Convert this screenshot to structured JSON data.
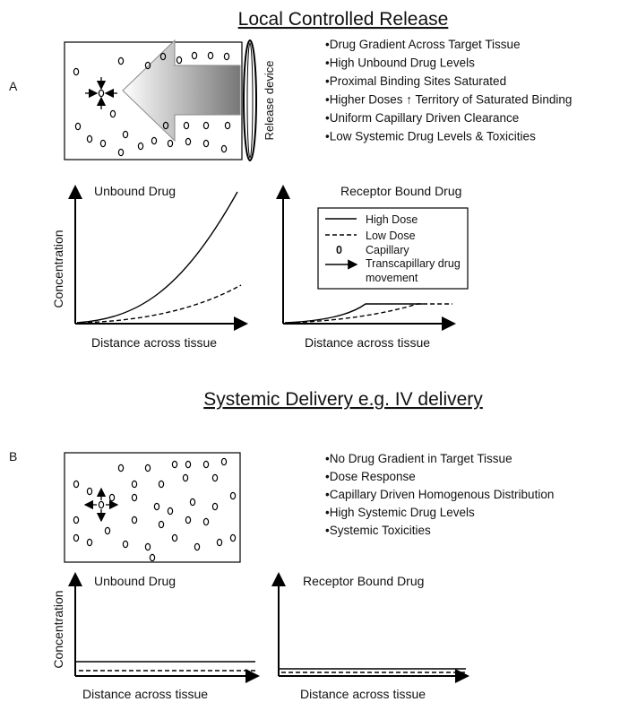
{
  "panel_a": {
    "label": "A",
    "title": "Local Controlled Release",
    "device_label": "Release device",
    "bullets": [
      "•Drug Gradient Across Target Tissue",
      "•High Unbound Drug Levels",
      "•Proximal Binding Sites Saturated",
      "•Higher Doses ↑ Territory of Saturated Binding",
      "•Uniform Capillary Driven Clearance",
      "•Low Systemic Drug Levels & Toxicities"
    ],
    "plots": [
      {
        "title": "Unbound Drug",
        "y_label": "Concentration",
        "x_label": "Distance across tissue"
      },
      {
        "title": "Receptor Bound Drug",
        "x_label": "Distance across tissue"
      }
    ],
    "legend": [
      {
        "label": "High Dose"
      },
      {
        "label": "Low Dose"
      },
      {
        "symbol": "0",
        "label": "Capillary"
      },
      {
        "lines": [
          "Transcapillary drug",
          "movement"
        ]
      }
    ]
  },
  "panel_b": {
    "label": "B",
    "title": "Systemic Delivery e.g. IV delivery",
    "bullets": [
      "•No Drug Gradient in Target Tissue",
      "•Dose Response",
      "•Capillary Driven Homogenous Distribution",
      "•High Systemic Drug Levels",
      "•Systemic Toxicities"
    ],
    "plots": [
      {
        "title": "Unbound Drug",
        "y_label": "Concentration",
        "x_label": "Distance across tissue"
      },
      {
        "title": "Receptor Bound Drug",
        "x_label": "Distance across tissue"
      }
    ]
  }
}
